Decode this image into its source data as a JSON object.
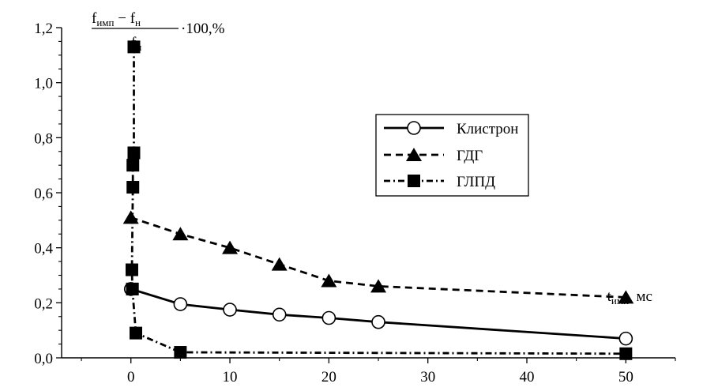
{
  "chart_data": {
    "type": "line",
    "title": "",
    "ylabel": {
      "num_f1": "f",
      "num_f1_sub": "имп",
      "num_minus": " − ",
      "num_f2": "f",
      "num_f2_sub": "н",
      "den_f": "f",
      "den_f_sub": "н",
      "suffix": "·100,%"
    },
    "xlabel": {
      "t": "t",
      "t_sub": "имп",
      "unit": ", мс"
    },
    "xlim": [
      -7,
      55
    ],
    "ylim": [
      0,
      1.2
    ],
    "x_ticks": [
      0,
      10,
      20,
      30,
      40,
      50
    ],
    "x_tick_labels": [
      "0",
      "10",
      "20",
      "30",
      "40",
      "50"
    ],
    "y_ticks": [
      0,
      0.2,
      0.4,
      0.6,
      0.8,
      1.0,
      1.2
    ],
    "y_tick_labels": [
      "0,0",
      "0,2",
      "0,4",
      "0,6",
      "0,8",
      "1,0",
      "1,2"
    ],
    "grid": false,
    "legend_position": "right",
    "series": [
      {
        "name": "Клистрон",
        "marker": "circle-open",
        "line": "solid",
        "x": [
          0,
          5,
          10,
          15,
          20,
          25,
          50
        ],
        "y": [
          0.25,
          0.195,
          0.175,
          0.157,
          0.145,
          0.13,
          0.07
        ]
      },
      {
        "name": "ГДГ",
        "marker": "triangle-filled",
        "line": "dashed",
        "x": [
          0,
          5,
          10,
          15,
          20,
          25,
          50
        ],
        "y": [
          0.51,
          0.45,
          0.4,
          0.34,
          0.28,
          0.26,
          0.22
        ]
      },
      {
        "name": "ГЛПД",
        "marker": "square-filled",
        "line": "dashdot",
        "x": [
          0.3,
          0.3,
          0.2,
          0.2,
          0.1,
          0.15,
          0.15,
          0.5,
          5,
          50
        ],
        "y": [
          1.13,
          0.745,
          0.7,
          0.62,
          0.32,
          0.25,
          0.25,
          0.09,
          0.02,
          0.015
        ]
      }
    ]
  }
}
